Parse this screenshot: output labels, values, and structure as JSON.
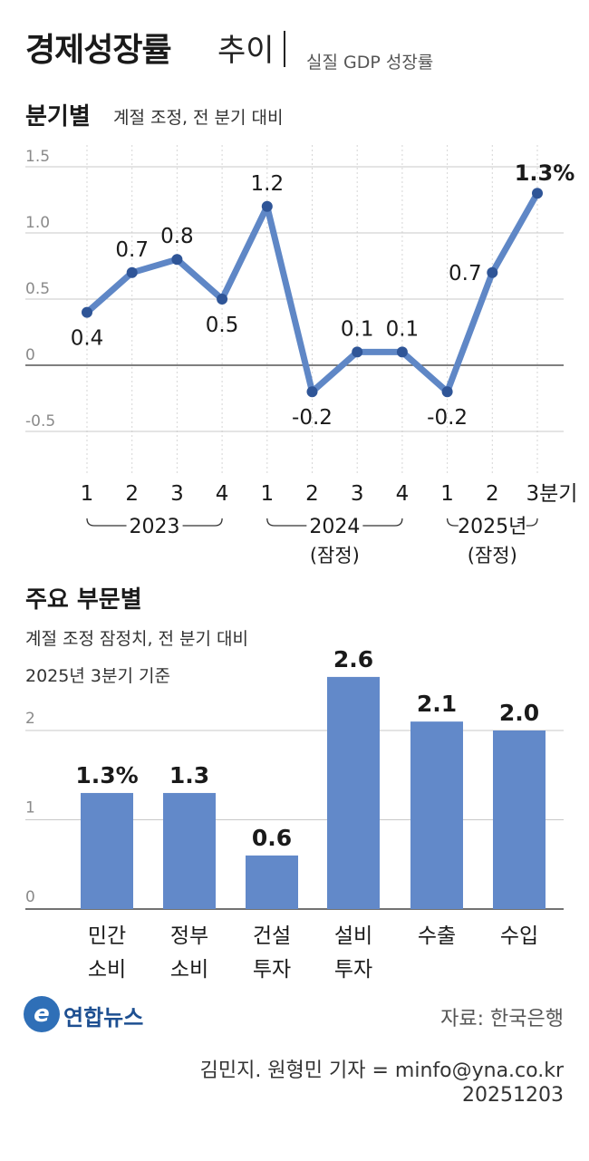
{
  "header": {
    "title": "경제성장률",
    "title_suffix": "추이",
    "subtitle": "실질 GDP 성장률"
  },
  "line_section": {
    "heading": "분기별",
    "note": "계절 조정, 전 분기 대비"
  },
  "bar_section": {
    "heading": "주요 부문별",
    "note_line1": "계절 조정 잠정치, 전 분기 대비",
    "note_line2": "2025년 3분기 기준"
  },
  "footer": {
    "logo_text": "연합뉴스",
    "source": "자료: 한국은행",
    "credit": "김민지. 원형민 기자 = minfo@yna.co.kr",
    "date": "20251203"
  },
  "colors": {
    "line": "#5f87c6",
    "marker": "#2f5597",
    "bar": "#6289c9",
    "grid": "#c8c8c8",
    "zero": "#555555"
  },
  "chart_data": [
    {
      "type": "line",
      "title": "분기별",
      "x": [
        "1",
        "2",
        "3",
        "4",
        "1",
        "2",
        "3",
        "4",
        "1",
        "2",
        "3분기"
      ],
      "year_groups": [
        {
          "label": "2023",
          "sub": "",
          "start": 0,
          "end": 3
        },
        {
          "label": "2024",
          "sub": "(잠정)",
          "start": 4,
          "end": 7
        },
        {
          "label": "2025년",
          "sub": "(잠정)",
          "start": 8,
          "end": 10
        }
      ],
      "values": [
        0.4,
        0.7,
        0.8,
        0.5,
        1.2,
        -0.2,
        0.1,
        0.1,
        -0.2,
        0.7,
        1.3
      ],
      "value_labels": [
        "0.4",
        "0.7",
        "0.8",
        "0.5",
        "1.2",
        "-0.2",
        "0.1",
        "0.1",
        "-0.2",
        "0.7",
        "1.3%"
      ],
      "ylim": [
        -0.5,
        1.5
      ],
      "yticks": [
        "1.5",
        "1.0",
        "0.5",
        "0",
        "-0.5"
      ],
      "grid": true
    },
    {
      "type": "bar",
      "title": "주요 부문별",
      "categories": [
        [
          "민간",
          "소비"
        ],
        [
          "정부",
          "소비"
        ],
        [
          "건설",
          "투자"
        ],
        [
          "설비",
          "투자"
        ],
        [
          "수출",
          ""
        ],
        [
          "수입",
          ""
        ]
      ],
      "values": [
        1.3,
        1.3,
        0.6,
        2.6,
        2.1,
        2.0
      ],
      "value_labels": [
        "1.3%",
        "1.3",
        "0.6",
        "2.6",
        "2.1",
        "2.0"
      ],
      "ylim": [
        0,
        2.6
      ],
      "yticks": [
        "2",
        "1",
        "0"
      ],
      "grid": true
    }
  ]
}
